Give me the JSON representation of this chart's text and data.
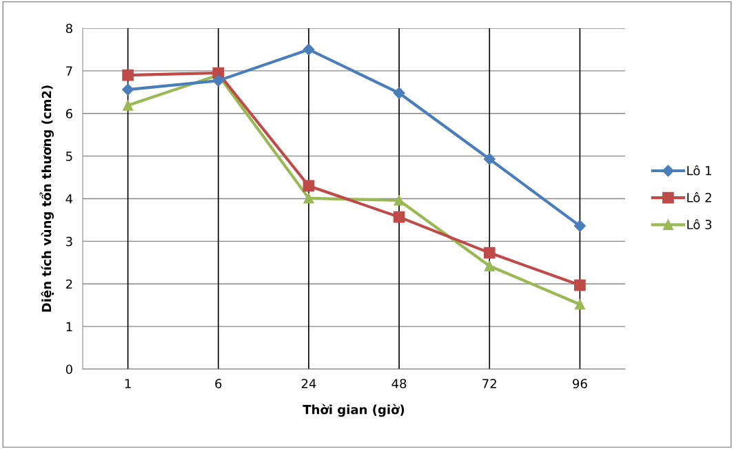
{
  "chart_data": {
    "type": "line",
    "xlabel": "Thời gian (giờ)",
    "ylabel": "Diện tích vùng tổn thương (cm2)",
    "categories": [
      "1",
      "6",
      "24",
      "48",
      "72",
      "96"
    ],
    "series": [
      {
        "name": "Lô 1",
        "color": "#4a7ebb",
        "marker": "diamond",
        "values": [
          6.56,
          6.77,
          7.5,
          6.48,
          4.93,
          3.36
        ]
      },
      {
        "name": "Lô 2",
        "color": "#be4b48",
        "marker": "square",
        "values": [
          6.9,
          6.95,
          4.3,
          3.57,
          2.73,
          1.97
        ]
      },
      {
        "name": "Lô 3",
        "color": "#98b954",
        "marker": "triangle",
        "values": [
          6.19,
          6.9,
          4.01,
          3.96,
          2.42,
          1.52
        ]
      }
    ],
    "ylim": [
      0,
      8
    ],
    "yticks": [
      0,
      1,
      2,
      3,
      4,
      5,
      6,
      7,
      8
    ],
    "grid": "y",
    "legend": "right",
    "line_style": "solid",
    "ref_lines": [
      {
        "axis": "x",
        "value": "1",
        "color": "#000000"
      },
      {
        "axis": "x",
        "value": "6",
        "color": "#000000"
      },
      {
        "axis": "x",
        "value": "24",
        "color": "#000000"
      },
      {
        "axis": "x",
        "value": "48",
        "color": "#000000"
      },
      {
        "axis": "x",
        "value": "72",
        "color": "#000000"
      },
      {
        "axis": "x",
        "value": "96",
        "color": "#000000"
      }
    ]
  }
}
